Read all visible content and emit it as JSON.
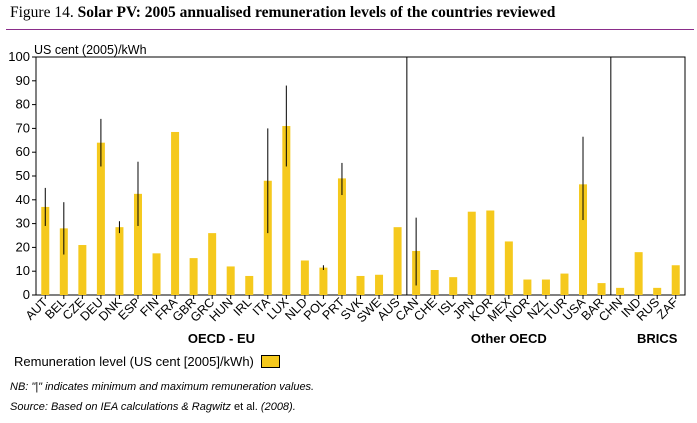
{
  "figure": {
    "label": "Figure 14.",
    "title": "Solar PV: 2005 annualised remuneration levels of the countries reviewed"
  },
  "notes": {
    "nb": "NB: \"|\" indicates minimum and maximum remuneration values.",
    "source_prefix": "Source: Based on IEA calculations & Ragwitz ",
    "source_etal": "et al.",
    "source_suffix": " (2008)."
  },
  "colors": {
    "bar": "#f5c91d",
    "whisker": "#000000",
    "divider": "#000000",
    "title_rule": "#8a2d8a"
  },
  "chart_data": {
    "type": "bar",
    "ylabel": "US cent (2005)/kWh",
    "ylim": [
      0,
      100
    ],
    "yticks": [
      0,
      10,
      20,
      30,
      40,
      50,
      60,
      70,
      80,
      90,
      100
    ],
    "grid": false,
    "legend": {
      "position": "bottom-left",
      "label": "Remuneration level (US cent [2005]/kWh)"
    },
    "series": [
      {
        "name": "Remuneration level (US cent [2005]/kWh)"
      }
    ],
    "groups": [
      {
        "label": "OECD - EU",
        "start": 0,
        "end": 19
      },
      {
        "label": "Other OECD",
        "start": 20,
        "end": 30
      },
      {
        "label": "BRICS",
        "start": 31,
        "end": 35
      }
    ],
    "categories": [
      "AUT",
      "BEL",
      "CZE",
      "DEU",
      "DNK",
      "ESP",
      "FIN",
      "FRA",
      "GBR",
      "GRC",
      "HUN",
      "IRL",
      "ITA",
      "LUX",
      "NLD",
      "POL",
      "PRT",
      "SVK",
      "SWE",
      "AUS",
      "CAN",
      "CHE",
      "ISL",
      "JPN",
      "KOR",
      "MEX",
      "NOR",
      "NZL",
      "TUR",
      "USA",
      "BAR",
      "CHN",
      "IND",
      "RUS",
      "ZAF"
    ],
    "values": [
      37,
      28,
      21,
      64,
      28.5,
      42.5,
      17.5,
      68.5,
      15.5,
      26,
      12,
      8,
      48,
      71,
      14.5,
      11.5,
      49,
      8,
      8.5,
      28.5,
      18.5,
      10.5,
      7.5,
      35,
      35.5,
      22.5,
      6.5,
      6.5,
      9,
      46.5,
      5,
      3,
      18,
      3,
      12.5
    ],
    "ranges": [
      [
        29,
        45
      ],
      [
        17,
        39
      ],
      null,
      [
        54,
        74
      ],
      [
        26,
        31
      ],
      [
        29,
        56
      ],
      null,
      null,
      null,
      null,
      null,
      null,
      [
        26,
        70
      ],
      [
        54,
        88
      ],
      null,
      [
        10.5,
        12.5
      ],
      [
        42,
        55.5
      ],
      null,
      null,
      null,
      [
        4,
        32.5
      ],
      null,
      null,
      null,
      null,
      null,
      null,
      null,
      null,
      [
        31.5,
        66.5
      ],
      null,
      null,
      null,
      null,
      null
    ]
  }
}
